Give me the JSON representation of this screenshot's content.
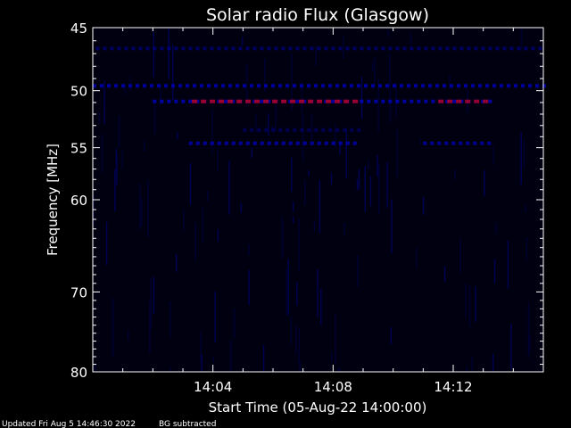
{
  "chart_data": {
    "type": "heatmap",
    "title": "Solar radio Flux (Glasgow)",
    "xlabel": "Start Time (05-Aug-22 14:00:00)",
    "ylabel": "Frequency [MHz]",
    "x_ticks": [
      "14:04",
      "14:08",
      "14:12"
    ],
    "x_tick_minutes": [
      4,
      8,
      12
    ],
    "xlim_minutes": [
      0,
      15
    ],
    "y_ticks": [
      45,
      50,
      55,
      60,
      70,
      80
    ],
    "ylim": [
      45,
      80
    ],
    "y_scale": "log",
    "y_inverted": true,
    "grid": false,
    "colormap": [
      "#000010",
      "#0000c8",
      "#9a0030"
    ],
    "bands": [
      {
        "freq": 46.6,
        "start_min": 0.1,
        "end_min": 15.0,
        "intensity": 0.45
      },
      {
        "freq": 49.6,
        "start_min": 0.0,
        "end_min": 15.0,
        "intensity": 0.75
      },
      {
        "freq": 50.9,
        "start_min": 2.0,
        "end_min": 13.4,
        "intensity": 0.8
      },
      {
        "freq": 50.9,
        "start_min": 3.3,
        "end_min": 8.7,
        "intensity": 1.0
      },
      {
        "freq": 50.9,
        "start_min": 11.5,
        "end_min": 13.0,
        "intensity": 0.95
      },
      {
        "freq": 54.6,
        "start_min": 3.2,
        "end_min": 8.7,
        "intensity": 0.75
      },
      {
        "freq": 54.6,
        "start_min": 11.0,
        "end_min": 13.3,
        "intensity": 0.7
      },
      {
        "freq": 53.4,
        "start_min": 5.0,
        "end_min": 9.0,
        "intensity": 0.25
      }
    ]
  },
  "footer": {
    "updated": "Updated Fri Aug  5 14:46:30 2022",
    "note": "BG subtracted"
  }
}
